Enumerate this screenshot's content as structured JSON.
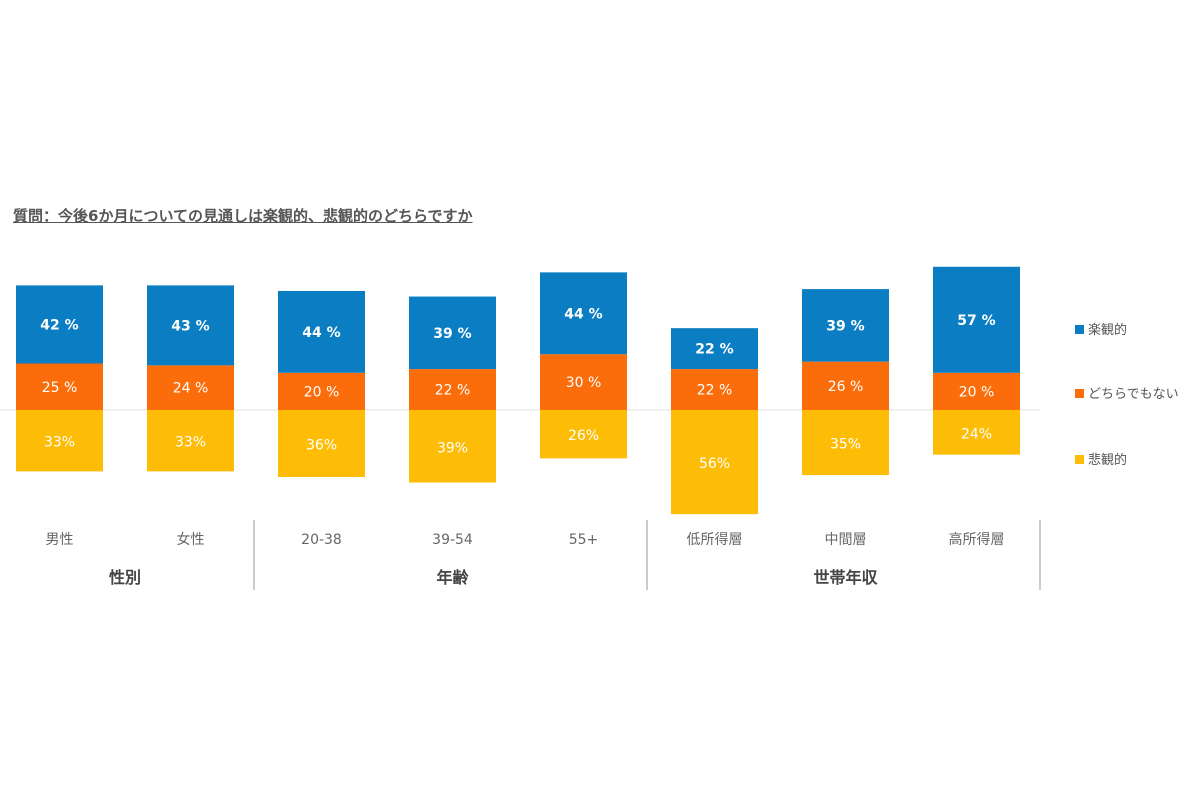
{
  "chart_data": {
    "type": "bar",
    "stacked": "diverging",
    "title": "質問：今後6か月についての見通しは楽観的、悲観的のどちらですか",
    "categories": [
      "男性",
      "女性",
      "20-38",
      "39-54",
      "55+",
      "低所得層",
      "中間層",
      "高所得層"
    ],
    "groups": [
      {
        "label": "性別",
        "count": 2
      },
      {
        "label": "年齢",
        "count": 3
      },
      {
        "label": "世帯年収",
        "count": 3
      }
    ],
    "series": [
      {
        "name": "楽観的",
        "color": "#0b7dc3",
        "values": [
          42,
          43,
          44,
          39,
          44,
          22,
          39,
          57
        ],
        "labels": [
          "42 %",
          "43 %",
          "44 %",
          "39 %",
          "44 %",
          "22 %",
          "39 %",
          "57 %"
        ]
      },
      {
        "name": "どちらでもない",
        "color": "#fb6d0b",
        "values": [
          25,
          24,
          20,
          22,
          30,
          22,
          26,
          20
        ],
        "labels": [
          "25 %",
          "24 %",
          "20 %",
          "22 %",
          "30 %",
          "22 %",
          "26 %",
          "20 %"
        ]
      },
      {
        "name": "悲観的",
        "color": "#fdbc05",
        "values": [
          33,
          33,
          36,
          39,
          26,
          56,
          35,
          24
        ],
        "labels": [
          "33%",
          "33%",
          "36%",
          "39%",
          "26%",
          "56%",
          "35%",
          "24%"
        ]
      }
    ],
    "legend": "right"
  }
}
